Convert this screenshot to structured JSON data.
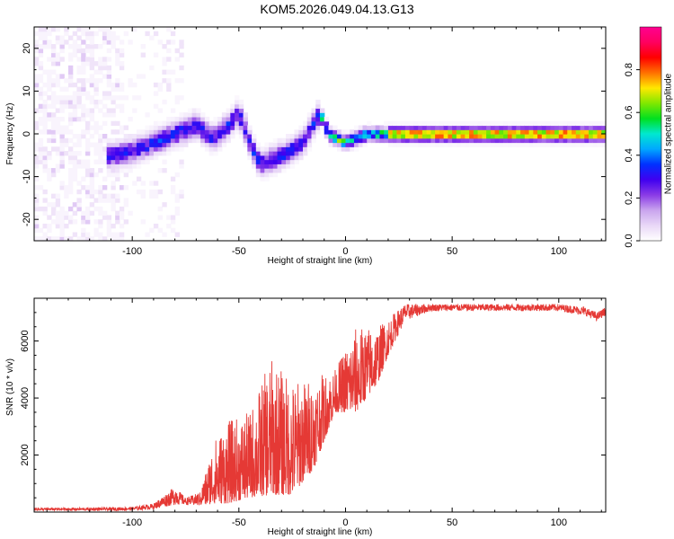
{
  "title": "KOM5.2026.049.04.13.G13",
  "chart_data": [
    {
      "type": "heatmap",
      "title": "KOM5.2026.049.04.13.G13",
      "xlabel": "Height of straight line (km)",
      "ylabel": "Frequency (Hz)",
      "xlim": [
        -146,
        122
      ],
      "ylim": [
        -25,
        25
      ],
      "xticks": [
        -100,
        -50,
        0,
        50,
        100
      ],
      "yticks": [
        -20,
        -10,
        0,
        10,
        20
      ],
      "colorbar": {
        "label": "Normalized spectral amplitude",
        "range": [
          0,
          1
        ],
        "ticks": [
          0.0,
          0.2,
          0.4,
          0.6,
          0.8
        ],
        "colormap": [
          "#ffffff",
          "#e9d8f7",
          "#c9a4ee",
          "#8a3be6",
          "#3f00f0",
          "#0030ff",
          "#00a8ff",
          "#00e8d0",
          "#00e020",
          "#80e800",
          "#ffe800",
          "#ff7000",
          "#ff0000",
          "#ff0060",
          "#ff0090"
        ]
      },
      "ridge": [
        {
          "x": -110,
          "y": -5
        },
        {
          "x": -100,
          "y": -4
        },
        {
          "x": -90,
          "y": -2
        },
        {
          "x": -80,
          "y": 0
        },
        {
          "x": -70,
          "y": 2
        },
        {
          "x": -62,
          "y": -1
        },
        {
          "x": -55,
          "y": 2
        },
        {
          "x": -50,
          "y": 5
        },
        {
          "x": -45,
          "y": -2
        },
        {
          "x": -40,
          "y": -7
        },
        {
          "x": -30,
          "y": -5
        },
        {
          "x": -20,
          "y": -2
        },
        {
          "x": -12,
          "y": 5
        },
        {
          "x": -8,
          "y": 0
        },
        {
          "x": 0,
          "y": -2
        },
        {
          "x": 10,
          "y": 0
        },
        {
          "x": 20,
          "y": 0
        },
        {
          "x": 50,
          "y": 0
        },
        {
          "x": 80,
          "y": 0
        },
        {
          "x": 110,
          "y": 0
        },
        {
          "x": 120,
          "y": 0
        }
      ]
    },
    {
      "type": "line",
      "xlabel": "Height of straight line (km)",
      "ylabel": "SNR (10 * v/v)",
      "xlim": [
        -146,
        122
      ],
      "ylim": [
        0,
        7500
      ],
      "xticks": [
        -100,
        -50,
        0,
        50,
        100
      ],
      "yticks": [
        2000,
        4000,
        6000
      ],
      "color": "#e53935",
      "envelope": [
        {
          "x": -146,
          "low": 50,
          "high": 150
        },
        {
          "x": -120,
          "low": 50,
          "high": 150
        },
        {
          "x": -100,
          "low": 50,
          "high": 180
        },
        {
          "x": -90,
          "low": 100,
          "high": 300
        },
        {
          "x": -80,
          "low": 250,
          "high": 900
        },
        {
          "x": -75,
          "low": 250,
          "high": 500
        },
        {
          "x": -68,
          "low": 200,
          "high": 700
        },
        {
          "x": -62,
          "low": 300,
          "high": 2500
        },
        {
          "x": -55,
          "low": 300,
          "high": 3200
        },
        {
          "x": -45,
          "low": 500,
          "high": 3500
        },
        {
          "x": -35,
          "low": 600,
          "high": 5400
        },
        {
          "x": -25,
          "low": 600,
          "high": 4600
        },
        {
          "x": -15,
          "low": 1500,
          "high": 4700
        },
        {
          "x": -5,
          "low": 3500,
          "high": 5000
        },
        {
          "x": 5,
          "low": 3500,
          "high": 6500
        },
        {
          "x": 15,
          "low": 4500,
          "high": 6500
        },
        {
          "x": 20,
          "low": 5500,
          "high": 6800
        },
        {
          "x": 28,
          "low": 6700,
          "high": 7300
        },
        {
          "x": 40,
          "low": 7050,
          "high": 7300
        },
        {
          "x": 60,
          "low": 7050,
          "high": 7300
        },
        {
          "x": 80,
          "low": 7050,
          "high": 7300
        },
        {
          "x": 100,
          "low": 7050,
          "high": 7300
        },
        {
          "x": 112,
          "low": 6900,
          "high": 7200
        },
        {
          "x": 118,
          "low": 6700,
          "high": 7000
        },
        {
          "x": 122,
          "low": 6900,
          "high": 7200
        }
      ]
    }
  ]
}
